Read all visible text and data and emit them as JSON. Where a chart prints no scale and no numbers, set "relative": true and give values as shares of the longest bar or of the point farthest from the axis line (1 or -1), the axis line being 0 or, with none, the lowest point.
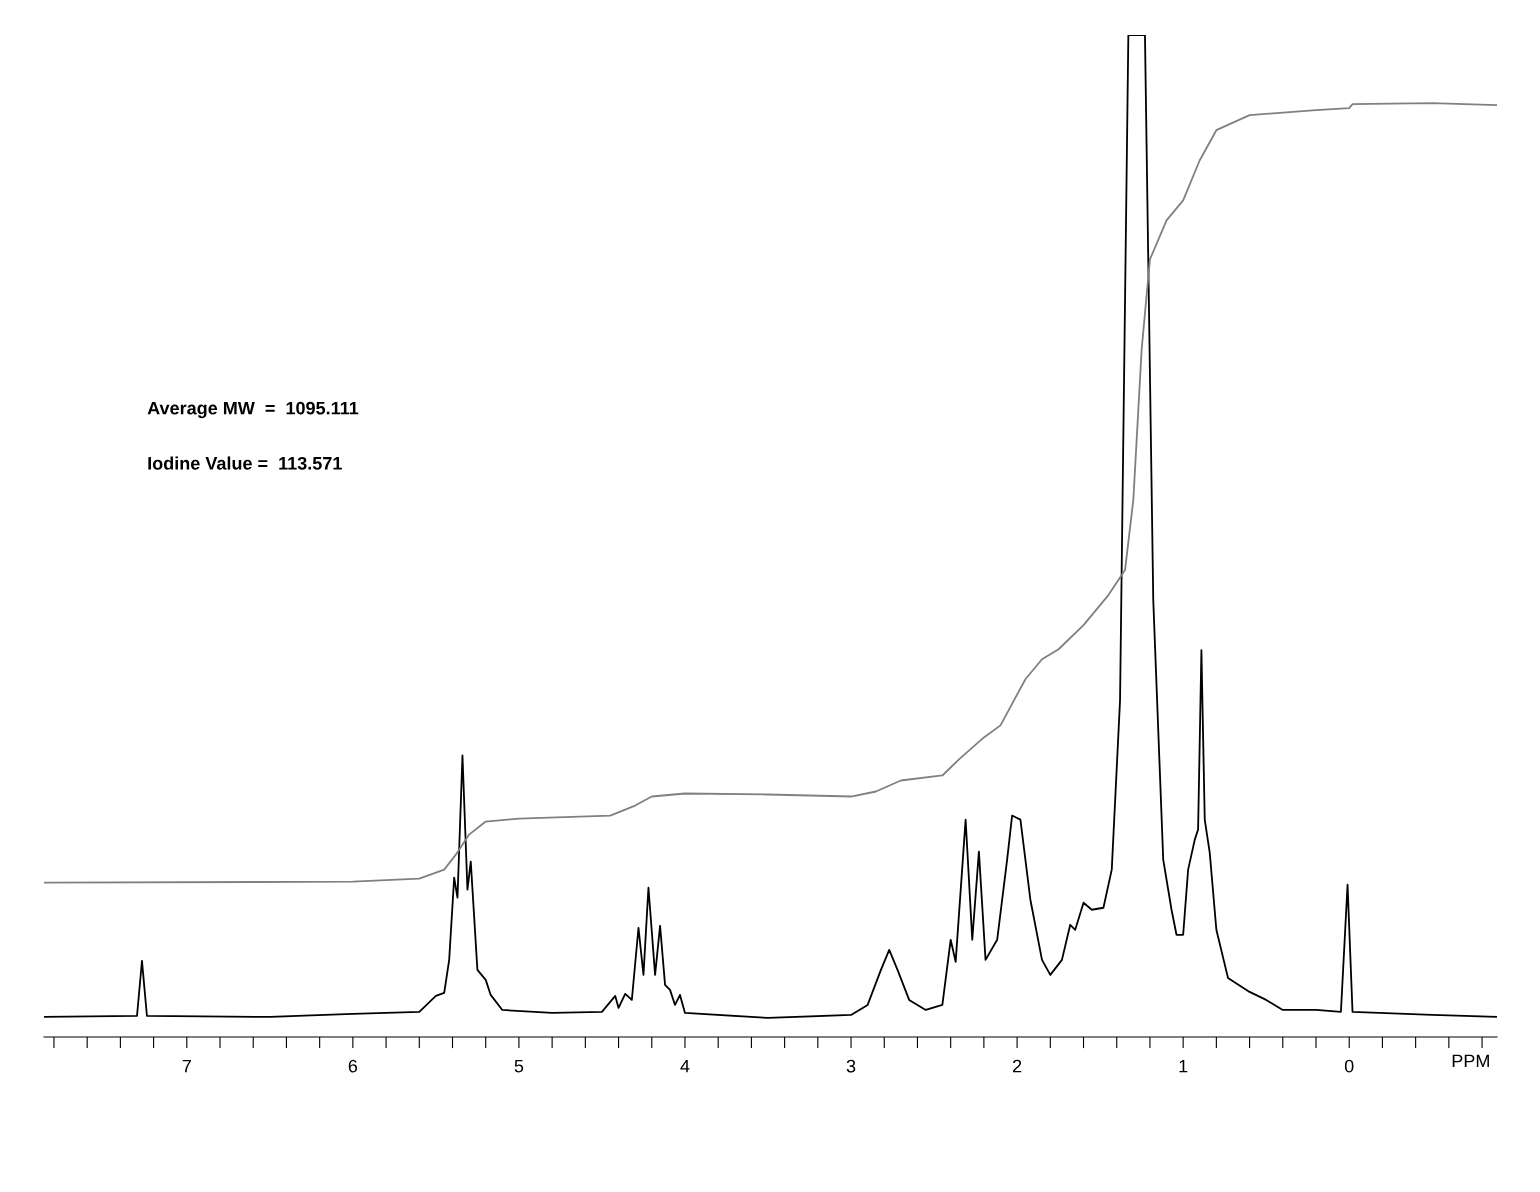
{
  "chart_data": {
    "type": "line",
    "relative": true,
    "xlabel": "PPM",
    "xlim": [
      7.86,
      -0.89
    ],
    "xticks": [
      {
        "value": 7.8,
        "label": null
      },
      {
        "value": 7.6,
        "label": null
      },
      {
        "value": 7.4,
        "label": null
      },
      {
        "value": 7.2,
        "label": null
      },
      7,
      {
        "value": 6.8,
        "label": null
      },
      {
        "value": 6.6,
        "label": null
      },
      {
        "value": 6.4,
        "label": null
      },
      {
        "value": 6.2,
        "label": null
      },
      6,
      {
        "value": 5.8,
        "label": null
      },
      {
        "value": 5.6,
        "label": null
      },
      {
        "value": 5.4,
        "label": null
      },
      {
        "value": 5.2,
        "label": null
      },
      5,
      {
        "value": 4.8,
        "label": null
      },
      {
        "value": 4.6,
        "label": null
      },
      {
        "value": 4.4,
        "label": null
      },
      {
        "value": 4.2,
        "label": null
      },
      4,
      {
        "value": 3.8,
        "label": null
      },
      {
        "value": 3.6,
        "label": null
      },
      {
        "value": 3.4,
        "label": null
      },
      {
        "value": 3.2,
        "label": null
      },
      3,
      {
        "value": 2.8,
        "label": null
      },
      {
        "value": 2.6,
        "label": null
      },
      {
        "value": 2.4,
        "label": null
      },
      {
        "value": 2.2,
        "label": null
      },
      2,
      {
        "value": 1.8,
        "label": null
      },
      {
        "value": 1.6,
        "label": null
      },
      {
        "value": 1.4,
        "label": null
      },
      {
        "value": 1.2,
        "label": null
      },
      1,
      {
        "value": 0.8,
        "label": null
      },
      {
        "value": 0.6,
        "label": null
      },
      {
        "value": 0.4,
        "label": null
      },
      {
        "value": 0.2,
        "label": null
      },
      0,
      {
        "value": -0.2,
        "label": null
      },
      {
        "value": -0.4,
        "label": null
      },
      {
        "value": -0.6,
        "label": null
      },
      {
        "value": -0.8,
        "label": null
      }
    ],
    "grid": false,
    "legend": false,
    "marker": "none",
    "line_style": "solid",
    "annotations": [
      "Average MW  =  1095.111",
      "Iodine Value =  113.571"
    ],
    "series": [
      {
        "color": "#000000",
        "x": [
          7.86,
          7.3,
          7.27,
          7.24,
          6.5,
          6.0,
          5.6,
          5.5,
          5.45,
          5.42,
          5.39,
          5.37,
          5.34,
          5.31,
          5.29,
          5.25,
          5.2,
          5.17,
          5.1,
          4.8,
          4.5,
          4.42,
          4.4,
          4.36,
          4.32,
          4.28,
          4.25,
          4.22,
          4.18,
          4.15,
          4.12,
          4.09,
          4.06,
          4.03,
          4.0,
          3.5,
          3.0,
          2.9,
          2.82,
          2.77,
          2.72,
          2.65,
          2.55,
          2.45,
          2.4,
          2.37,
          2.31,
          2.27,
          2.23,
          2.19,
          2.12,
          2.06,
          2.03,
          1.98,
          1.92,
          1.85,
          1.8,
          1.73,
          1.68,
          1.65,
          1.6,
          1.55,
          1.48,
          1.43,
          1.38,
          1.33,
          1.23,
          1.18,
          1.12,
          1.07,
          1.04,
          1.0,
          0.97,
          0.93,
          0.91,
          0.89,
          0.87,
          0.84,
          0.8,
          0.73,
          0.6,
          0.5,
          0.4,
          0.2,
          0.05,
          0.01,
          -0.02,
          -0.5,
          -0.89
        ],
        "values": [
          0.02,
          0.021,
          0.076,
          0.021,
          0.02,
          0.023,
          0.025,
          0.041,
          0.044,
          0.077,
          0.159,
          0.139,
          0.281,
          0.147,
          0.175,
          0.067,
          0.057,
          0.042,
          0.027,
          0.024,
          0.025,
          0.041,
          0.029,
          0.043,
          0.037,
          0.109,
          0.062,
          0.149,
          0.062,
          0.111,
          0.052,
          0.047,
          0.032,
          0.042,
          0.024,
          0.019,
          0.022,
          0.032,
          0.067,
          0.087,
          0.067,
          0.037,
          0.027,
          0.032,
          0.097,
          0.075,
          0.217,
          0.097,
          0.185,
          0.077,
          0.097,
          0.177,
          0.221,
          0.217,
          0.137,
          0.077,
          0.062,
          0.077,
          0.112,
          0.107,
          0.134,
          0.127,
          0.129,
          0.167,
          0.336,
          1.0,
          1.0,
          0.436,
          0.177,
          0.127,
          0.102,
          0.102,
          0.167,
          0.197,
          0.207,
          0.386,
          0.217,
          0.184,
          0.107,
          0.059,
          0.045,
          0.037,
          0.027,
          0.027,
          0.025,
          0.152,
          0.025,
          0.022,
          0.02
        ]
      },
      {
        "color": "#808080",
        "x": [
          7.86,
          6.0,
          5.6,
          5.45,
          5.38,
          5.3,
          5.2,
          5.0,
          4.45,
          4.3,
          4.2,
          4.0,
          3.5,
          3.0,
          2.85,
          2.7,
          2.45,
          2.35,
          2.2,
          2.1,
          1.95,
          1.85,
          1.75,
          1.6,
          1.45,
          1.35,
          1.3,
          1.25,
          1.2,
          1.1,
          1.0,
          0.9,
          0.8,
          0.6,
          0.2,
          0.0,
          -0.02,
          -0.5,
          -0.89
        ],
        "values": [
          0.154,
          0.155,
          0.158,
          0.167,
          0.182,
          0.202,
          0.215,
          0.218,
          0.221,
          0.231,
          0.24,
          0.243,
          0.242,
          0.24,
          0.245,
          0.256,
          0.261,
          0.277,
          0.299,
          0.311,
          0.357,
          0.377,
          0.387,
          0.411,
          0.441,
          0.466,
          0.536,
          0.686,
          0.776,
          0.815,
          0.835,
          0.875,
          0.905,
          0.92,
          0.925,
          0.927,
          0.931,
          0.932,
          0.93
        ]
      }
    ]
  }
}
